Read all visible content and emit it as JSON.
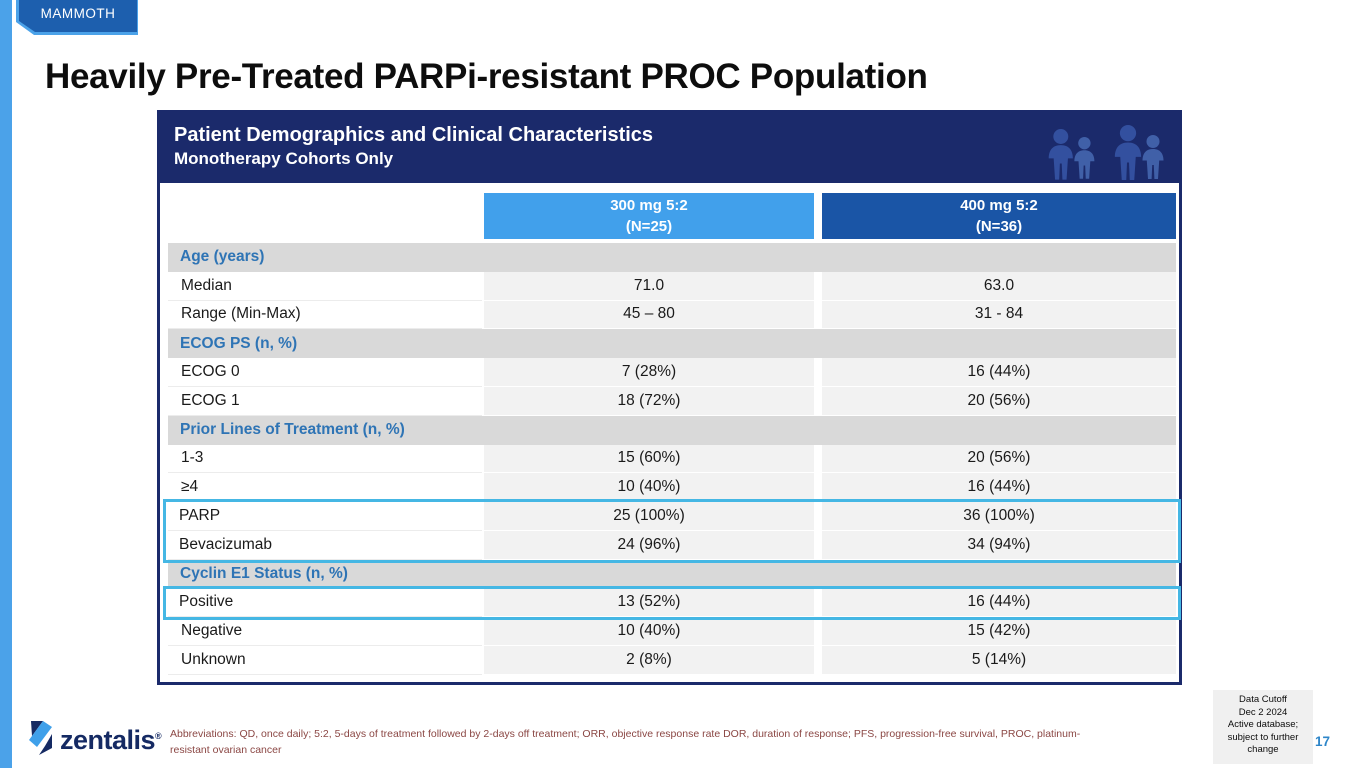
{
  "badge": "MAMMOTH",
  "title": "Heavily Pre-Treated PARPi-resistant PROC Population",
  "table": {
    "header_line1": "Patient Demographics and Clinical Characteristics",
    "header_line2": "Monotherapy Cohorts Only",
    "people_icon": "people-silhouettes-icon",
    "columns": [
      {
        "line1": "300 mg 5:2",
        "line2": "(N=25)",
        "color": "#41A0EB"
      },
      {
        "line1": "400 mg 5:2",
        "line2": "(N=36)",
        "color": "#1A55A6"
      }
    ],
    "rows": [
      {
        "type": "section",
        "label": "Age (years)"
      },
      {
        "type": "data",
        "label": "Median",
        "values": [
          "71.0",
          "63.0"
        ]
      },
      {
        "type": "data",
        "label": "Range (Min-Max)",
        "values": [
          "45 – 80",
          "31 - 84"
        ]
      },
      {
        "type": "section",
        "label": "ECOG PS (n, %)"
      },
      {
        "type": "data",
        "label": "ECOG 0",
        "values": [
          "7 (28%)",
          "16 (44%)"
        ]
      },
      {
        "type": "data",
        "label": "ECOG 1",
        "values": [
          "18 (72%)",
          "20 (56%)"
        ]
      },
      {
        "type": "section",
        "label": "Prior Lines of Treatment (n, %)"
      },
      {
        "type": "data",
        "label": "1-3",
        "values": [
          "15 (60%)",
          "20 (56%)"
        ]
      },
      {
        "type": "data",
        "label": "≥4",
        "values": [
          "10 (40%)",
          "16 (44%)"
        ]
      },
      {
        "type": "data",
        "label": "PARP",
        "values": [
          "25 (100%)",
          "36 (100%)"
        ],
        "highlight_group": 1
      },
      {
        "type": "data",
        "label": "Bevacizumab",
        "values": [
          "24 (96%)",
          "34 (94%)"
        ],
        "highlight_group": 1
      },
      {
        "type": "section",
        "label": "Cyclin E1 Status (n, %)"
      },
      {
        "type": "data",
        "label": "Positive",
        "values": [
          "13 (52%)",
          "16 (44%)"
        ],
        "highlight_group": 2
      },
      {
        "type": "data",
        "label": "Negative",
        "values": [
          "10 (40%)",
          "15 (42%)"
        ]
      },
      {
        "type": "data",
        "label": "Unknown",
        "values": [
          "2 (8%)",
          "5 (14%)"
        ]
      }
    ]
  },
  "footer": {
    "logo_text": "zentalis",
    "logo_reg": "®",
    "abbreviations": "Abbreviations: QD, once daily; 5:2, 5-days of treatment followed by 2-days off treatment; ORR, objective response rate DOR, duration of response; PFS, progression-free survival, PROC, platinum-resistant ovarian cancer",
    "data_cutoff": "Data Cutoff\nDec 2 2024\nActive database;\nsubject to further\nchange",
    "page_number": "17"
  },
  "colors": {
    "navy": "#1B2A6B",
    "light_blue_accent": "#4BA2E9",
    "badge_blue": "#1D5FAE",
    "col_header_light": "#41A0EB",
    "col_header_dark": "#1A55A6",
    "section_row_bg": "#D9D9D9",
    "section_text": "#2E74B5",
    "value_cell_bg": "#F2F2F2",
    "highlight_border": "#45B7E4",
    "footnote_text": "#8B4744",
    "page_number_blue": "#2E86C9"
  }
}
